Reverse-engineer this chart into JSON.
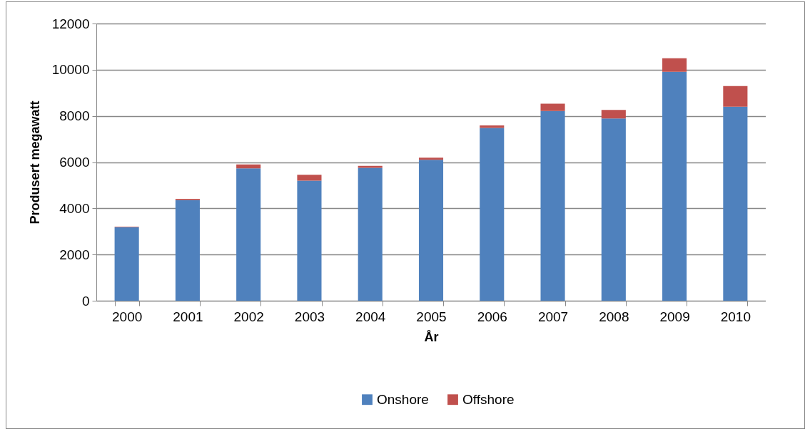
{
  "chart_data": {
    "type": "bar",
    "stacked": true,
    "xlabel": "År",
    "ylabel": "Produsert megawatt",
    "categories": [
      "2000",
      "2001",
      "2002",
      "2003",
      "2004",
      "2005",
      "2006",
      "2007",
      "2008",
      "2009",
      "2010"
    ],
    "series": [
      {
        "name": "Onshore",
        "color": "#4f81bd",
        "values": [
          3180,
          4360,
          5730,
          5200,
          5750,
          6100,
          7480,
          8210,
          7890,
          9910,
          8400
        ]
      },
      {
        "name": "Offshore",
        "color": "#c0504d",
        "values": [
          20,
          50,
          170,
          250,
          90,
          90,
          110,
          320,
          370,
          590,
          890
        ]
      }
    ],
    "ylim": [
      0,
      12000
    ],
    "yticks": [
      0,
      2000,
      4000,
      6000,
      8000,
      10000,
      12000
    ],
    "grid": "y",
    "legend": "bottom"
  }
}
